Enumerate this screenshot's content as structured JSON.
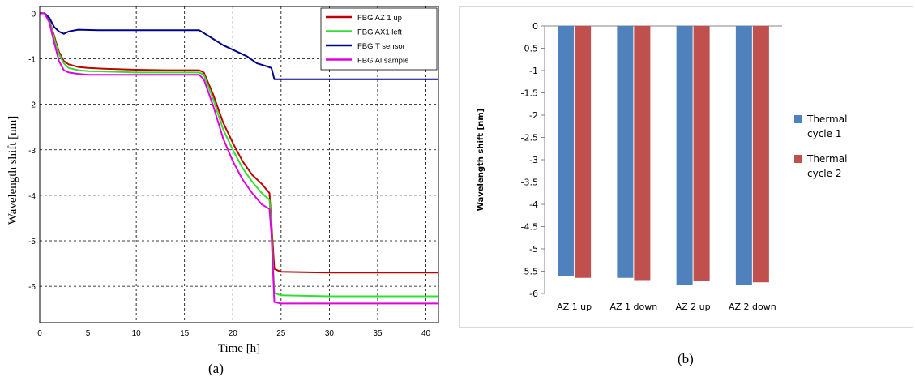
{
  "panel_labels": {
    "a": "(a)",
    "b": "(b)"
  },
  "chart_data": [
    {
      "type": "line",
      "xlabel": "Time [h]",
      "ylabel": "Wavelength shift [nm]",
      "xlim": [
        0,
        41.3
      ],
      "ylim": [
        -6.8,
        0.15
      ],
      "xticks": [
        0,
        5,
        10,
        15,
        20,
        25,
        30,
        35,
        40
      ],
      "yticks": [
        0,
        -1,
        -2,
        -3,
        -4,
        -5,
        -6
      ],
      "grid": true,
      "legend_position": "top-right",
      "colors": [
        "#c00000",
        "#33dd33",
        "#00008b",
        "#e000e0"
      ],
      "series": [
        {
          "name": "FBG AZ 1 up",
          "x": [
            0,
            0.5,
            1.0,
            1.5,
            2.0,
            2.5,
            3.0,
            4.0,
            5.0,
            7.0,
            10.0,
            13.0,
            16.5,
            17.0,
            18.0,
            19.0,
            20.0,
            21.0,
            22.0,
            23.0,
            23.8,
            24.0,
            24.3,
            25.0,
            30.0,
            35.0,
            40.0,
            41.3
          ],
          "y": [
            0,
            0,
            -0.15,
            -0.5,
            -0.85,
            -1.05,
            -1.12,
            -1.18,
            -1.2,
            -1.22,
            -1.24,
            -1.25,
            -1.25,
            -1.3,
            -1.8,
            -2.4,
            -2.85,
            -3.25,
            -3.55,
            -3.75,
            -3.95,
            -4.6,
            -5.62,
            -5.68,
            -5.7,
            -5.7,
            -5.7,
            -5.7
          ]
        },
        {
          "name": "FBG AX1 left",
          "x": [
            0,
            0.5,
            1.0,
            1.5,
            2.0,
            2.5,
            3.0,
            4.0,
            5.0,
            7.0,
            10.0,
            13.0,
            16.5,
            17.0,
            18.0,
            19.0,
            20.0,
            21.0,
            22.0,
            23.0,
            23.8,
            24.0,
            24.3,
            25.0,
            30.0,
            35.0,
            40.0,
            41.3
          ],
          "y": [
            0,
            0,
            -0.15,
            -0.55,
            -0.9,
            -1.1,
            -1.2,
            -1.25,
            -1.27,
            -1.28,
            -1.3,
            -1.3,
            -1.3,
            -1.35,
            -1.9,
            -2.55,
            -3.0,
            -3.4,
            -3.7,
            -3.95,
            -4.1,
            -4.7,
            -6.15,
            -6.2,
            -6.22,
            -6.22,
            -6.22,
            -6.22
          ]
        },
        {
          "name": "FBG T sensor",
          "x": [
            0,
            0.5,
            1.0,
            1.5,
            2.0,
            2.5,
            3.0,
            3.5,
            4.0,
            6.0,
            10.0,
            16.5,
            17.5,
            19.0,
            20.0,
            21.5,
            22.5,
            23.3,
            24.0,
            24.3,
            30.0,
            35.0,
            40.0,
            41.3
          ],
          "y": [
            0,
            0,
            -0.1,
            -0.3,
            -0.4,
            -0.45,
            -0.4,
            -0.38,
            -0.36,
            -0.37,
            -0.37,
            -0.37,
            -0.5,
            -0.7,
            -0.8,
            -0.95,
            -1.1,
            -1.15,
            -1.2,
            -1.45,
            -1.45,
            -1.45,
            -1.45,
            -1.45
          ]
        },
        {
          "name": "FBG Al sample",
          "x": [
            0,
            0.5,
            1.0,
            1.5,
            2.0,
            2.5,
            3.0,
            4.0,
            5.0,
            7.0,
            10.0,
            13.0,
            16.5,
            17.0,
            18.0,
            19.0,
            20.0,
            21.0,
            22.0,
            23.0,
            23.8,
            24.0,
            24.3,
            25.0,
            30.0,
            35.0,
            40.0,
            41.3
          ],
          "y": [
            0,
            0,
            -0.2,
            -0.65,
            -1.05,
            -1.25,
            -1.3,
            -1.33,
            -1.35,
            -1.35,
            -1.35,
            -1.35,
            -1.35,
            -1.45,
            -2.05,
            -2.75,
            -3.25,
            -3.65,
            -3.95,
            -4.2,
            -4.3,
            -4.85,
            -6.35,
            -6.38,
            -6.38,
            -6.38,
            -6.38,
            -6.38
          ]
        }
      ]
    },
    {
      "type": "bar",
      "categories": [
        "AZ 1 up",
        "AZ 1 down",
        "AZ 2 up",
        "AZ 2 down"
      ],
      "ylabel": "Wavelength shift [nm]",
      "ylim": [
        -6,
        0
      ],
      "yticks": [
        "0",
        "-0.5",
        "-1",
        "-1.5",
        "-2",
        "-2.5",
        "-3",
        "-3.5",
        "-4",
        "-4.5",
        "-5",
        "-5.5",
        "-6"
      ],
      "legend_position": "right",
      "colors": [
        "#4f81bd",
        "#c0504d"
      ],
      "series": [
        {
          "name": "Thermal cycle 1",
          "legend_lines": [
            "Thermal",
            "cycle 1"
          ],
          "values": [
            -5.6,
            -5.65,
            -5.8,
            -5.8
          ]
        },
        {
          "name": "Thermal cycle 2",
          "legend_lines": [
            "Thermal",
            "cycle 2"
          ],
          "values": [
            -5.65,
            -5.7,
            -5.72,
            -5.75
          ]
        }
      ]
    }
  ]
}
